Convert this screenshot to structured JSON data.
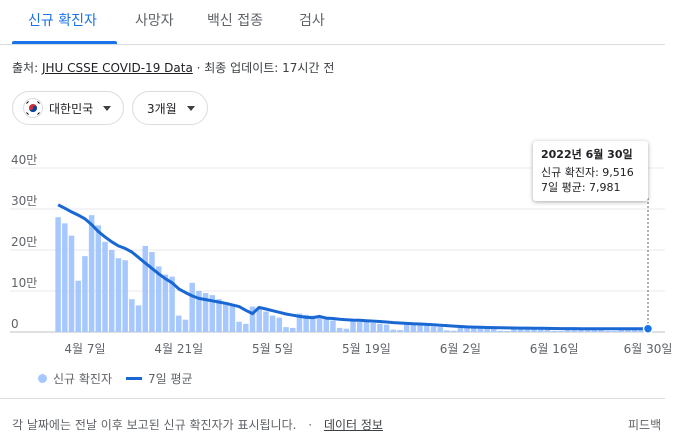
{
  "tabs": [
    {
      "label": "신규 확진자",
      "active": true
    },
    {
      "label": "사망자",
      "active": false
    },
    {
      "label": "백신 접종",
      "active": false
    },
    {
      "label": "검사",
      "active": false
    }
  ],
  "source": {
    "prefix": "출처: ",
    "link": "JHU CSSE COVID-19 Data",
    "suffix": " · 최종 업데이트: 17시간 전"
  },
  "filters": {
    "region": "대한민국",
    "period": "3개월"
  },
  "tooltip": {
    "date": "2022년 6월 30일",
    "new_cases": "신규 확진자: 9,516",
    "avg7": "7일 평균: 7,981"
  },
  "legend": {
    "bars": "신규 확진자",
    "line": "7일 평균"
  },
  "footer": {
    "note": "각 날짜에는 전날 이후 보고된 신규 확진자가 표시됩니다.",
    "sep": "·",
    "link": "데이터 정보",
    "feedback": "피드백"
  },
  "colors": {
    "accent": "#1a73e8",
    "bar": "#a6c8ff",
    "line": "#1967d2"
  },
  "chart_data": {
    "type": "bar",
    "title": "",
    "xlabel": "",
    "ylabel": "",
    "ylim": [
      0,
      400000
    ],
    "y_ticks": [
      {
        "value": 0,
        "label": "0"
      },
      {
        "value": 100000,
        "label": "10만"
      },
      {
        "value": 200000,
        "label": "20만"
      },
      {
        "value": 300000,
        "label": "30만"
      },
      {
        "value": 400000,
        "label": "40만"
      }
    ],
    "x_ticks": [
      {
        "index": 7,
        "label": "4월 7일"
      },
      {
        "index": 21,
        "label": "4월 21일"
      },
      {
        "index": 35,
        "label": "5월 5일"
      },
      {
        "index": 49,
        "label": "5월 19일"
      },
      {
        "index": 63,
        "label": "6월 2일"
      },
      {
        "index": 77,
        "label": "6월 16일"
      },
      {
        "index": 91,
        "label": "6월 30일"
      }
    ],
    "grid": true,
    "legend_position": "bottom-left",
    "highlight_index": 91,
    "series": [
      {
        "name": "신규 확진자",
        "type": "bar",
        "values": [
          0,
          0,
          0,
          280000,
          265000,
          235000,
          125000,
          185000,
          285000,
          260000,
          220000,
          200000,
          180000,
          175000,
          80000,
          65000,
          210000,
          195000,
          160000,
          140000,
          135000,
          40000,
          30000,
          120000,
          100000,
          95000,
          90000,
          80000,
          70000,
          65000,
          25000,
          20000,
          62000,
          60000,
          50000,
          40000,
          35000,
          12000,
          10000,
          45000,
          42000,
          40000,
          36000,
          33000,
          28000,
          10000,
          8000,
          27000,
          25000,
          25000,
          22000,
          20000,
          18000,
          6000,
          5000,
          20000,
          18000,
          17000,
          15000,
          13000,
          12000,
          4000,
          3000,
          14000,
          13000,
          12000,
          11000,
          10000,
          9500,
          3000,
          2500,
          10500,
          10000,
          9800,
          9000,
          8500,
          7500,
          2800,
          2400,
          9500,
          9000,
          8800,
          8200,
          7800,
          7200,
          2600,
          2300,
          9800,
          9700,
          9600,
          9500,
          9516
        ]
      },
      {
        "name": "7일 평균",
        "type": "line",
        "values": [
          0,
          0,
          0,
          310000,
          302000,
          293000,
          285000,
          276000,
          262000,
          245000,
          232000,
          220000,
          210000,
          204000,
          195000,
          182000,
          168000,
          155000,
          142000,
          130000,
          120000,
          105000,
          96000,
          88000,
          82000,
          79000,
          76000,
          73000,
          70000,
          66000,
          62000,
          53000,
          45000,
          60000,
          56000,
          52000,
          48000,
          44000,
          41000,
          38000,
          36000,
          35000,
          38000,
          34000,
          33000,
          31000,
          30000,
          29000,
          28500,
          27500,
          26500,
          25500,
          24500,
          23000,
          22000,
          21000,
          20000,
          19500,
          18500,
          17500,
          16500,
          15500,
          14500,
          13500,
          12500,
          12000,
          11500,
          11000,
          10800,
          10500,
          10000,
          9800,
          9600,
          9400,
          9200,
          9000,
          8800,
          8600,
          8400,
          8300,
          8200,
          8100,
          8000,
          7950,
          7900,
          7850,
          7800,
          7800,
          7850,
          7900,
          7950,
          7981
        ]
      }
    ]
  }
}
